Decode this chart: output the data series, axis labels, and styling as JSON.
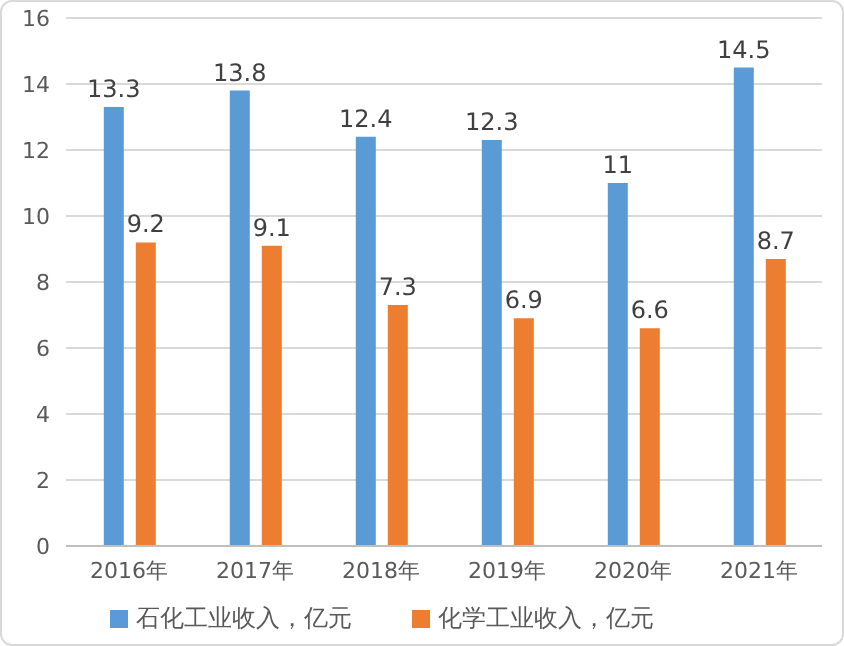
{
  "chart_data": {
    "type": "bar",
    "categories": [
      "2016年",
      "2017年",
      "2018年",
      "2019年",
      "2020年",
      "2021年"
    ],
    "series": [
      {
        "name": "石化工业收入，亿元",
        "color": "#5b9bd5",
        "values": [
          13.3,
          13.8,
          12.4,
          12.3,
          11,
          14.5
        ]
      },
      {
        "name": "化学工业收入，亿元",
        "color": "#ed7d31",
        "values": [
          9.2,
          9.1,
          7.3,
          6.9,
          6.6,
          8.7
        ]
      }
    ],
    "ylim": [
      0,
      16
    ],
    "yticks": [
      0,
      2,
      4,
      6,
      8,
      10,
      12,
      14,
      16
    ],
    "grid": "y",
    "legend": "bottom",
    "data_labels": true
  }
}
